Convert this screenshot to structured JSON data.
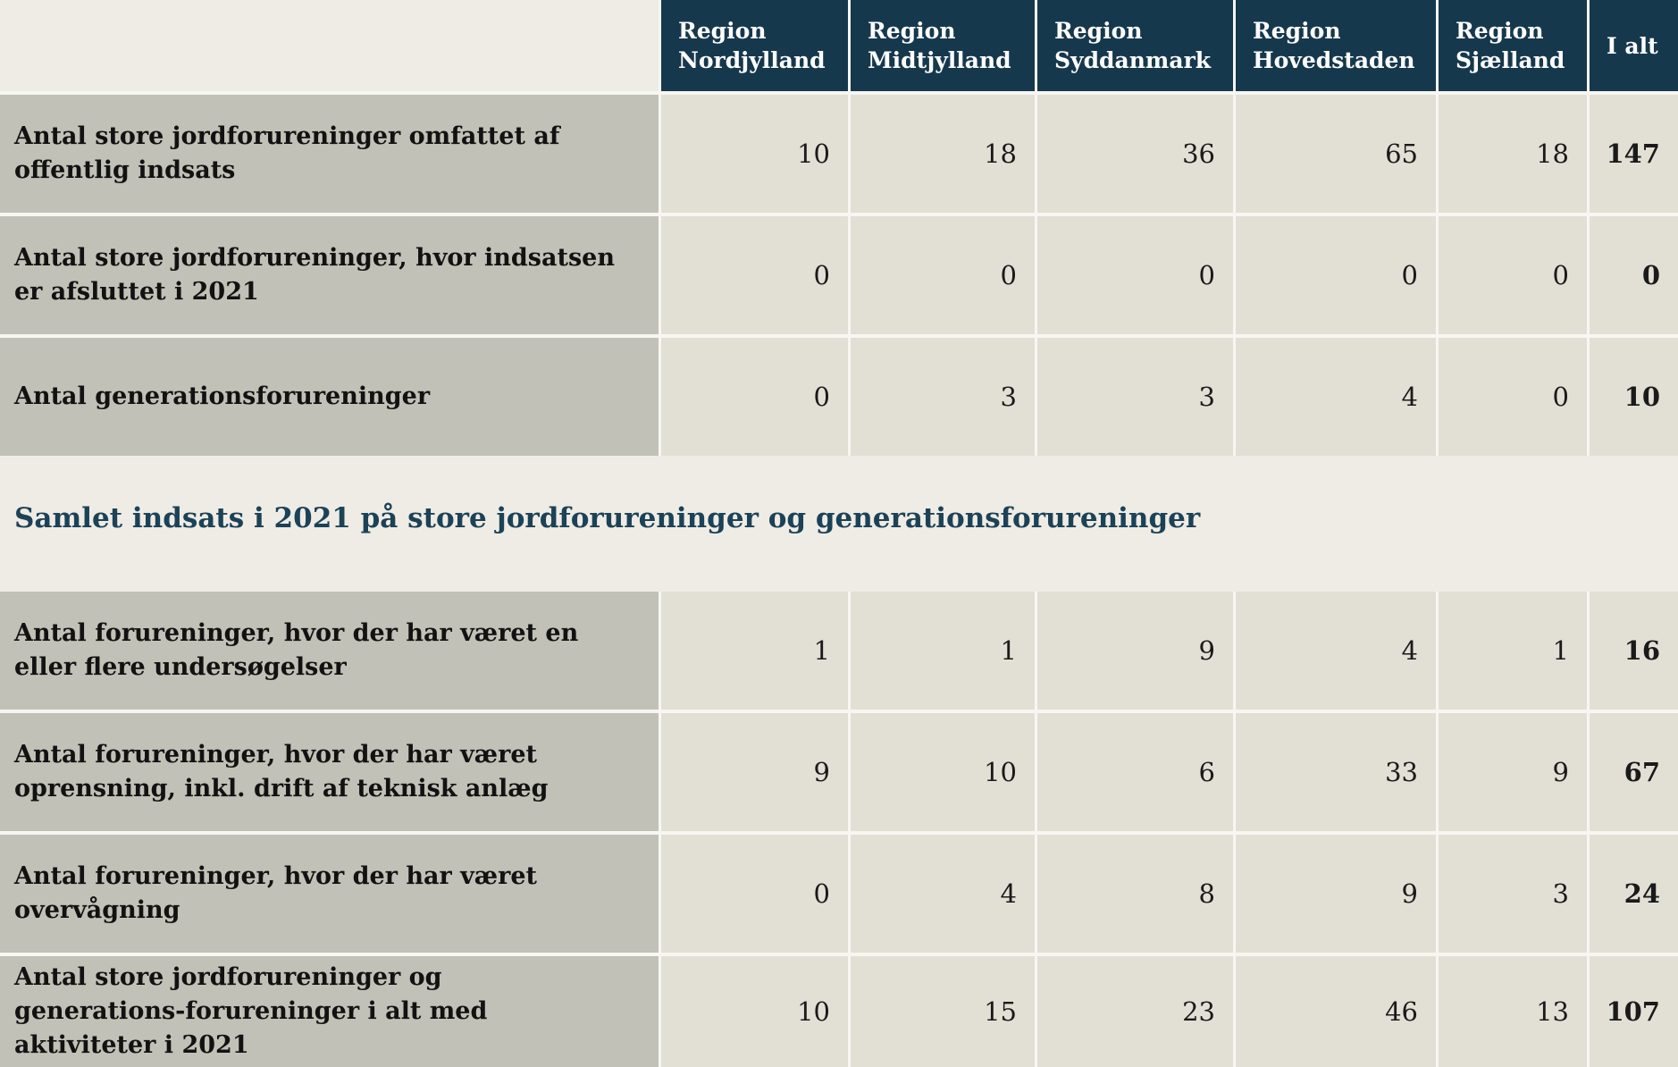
{
  "header": {
    "columns": [
      "Region Nordjylland",
      "Region Midtjylland",
      "Region Syddanmark",
      "Region Hovedstaden",
      "Region Sjælland",
      "I alt"
    ]
  },
  "section_title": "Samlet indsats i 2021 på store jordforureninger og generationsforureninger",
  "table1": {
    "rows": [
      {
        "label": "Antal store jordforureninger omfattet af offentlig indsats",
        "values": [
          "10",
          "18",
          "36",
          "65",
          "18"
        ],
        "total": "147"
      },
      {
        "label": "Antal store jordforureninger, hvor indsatsen er afsluttet i 2021",
        "values": [
          "0",
          "0",
          "0",
          "0",
          "0"
        ],
        "total": "0"
      },
      {
        "label": "Antal generationsforureninger",
        "values": [
          "0",
          "3",
          "3",
          "4",
          "0"
        ],
        "total": "10"
      }
    ]
  },
  "table2": {
    "rows": [
      {
        "label": "Antal forureninger, hvor der har været en eller flere undersøgelser",
        "values": [
          "1",
          "1",
          "9",
          "4",
          "1"
        ],
        "total": "16"
      },
      {
        "label": "Antal forureninger, hvor der har været oprensning, inkl. drift af teknisk anlæg",
        "values": [
          "9",
          "10",
          "6",
          "33",
          "9"
        ],
        "total": "67"
      },
      {
        "label": "Antal forureninger, hvor der har været overvågning",
        "values": [
          "0",
          "4",
          "8",
          "9",
          "3"
        ],
        "total": "24"
      },
      {
        "label": "Antal store jordforureninger og generations-forureninger i alt med aktiviteter i 2021",
        "values": [
          "10",
          "15",
          "23",
          "46",
          "13"
        ],
        "total": "107"
      }
    ]
  },
  "colors": {
    "page_background": "#efece5",
    "header_background": "#16384d",
    "header_text": "#ffffff",
    "row_label_background": "#c1c1b7",
    "data_cell_background": "#e2dfd5",
    "section_title_text": "#1c4257",
    "seam": "#f8f6f1"
  }
}
